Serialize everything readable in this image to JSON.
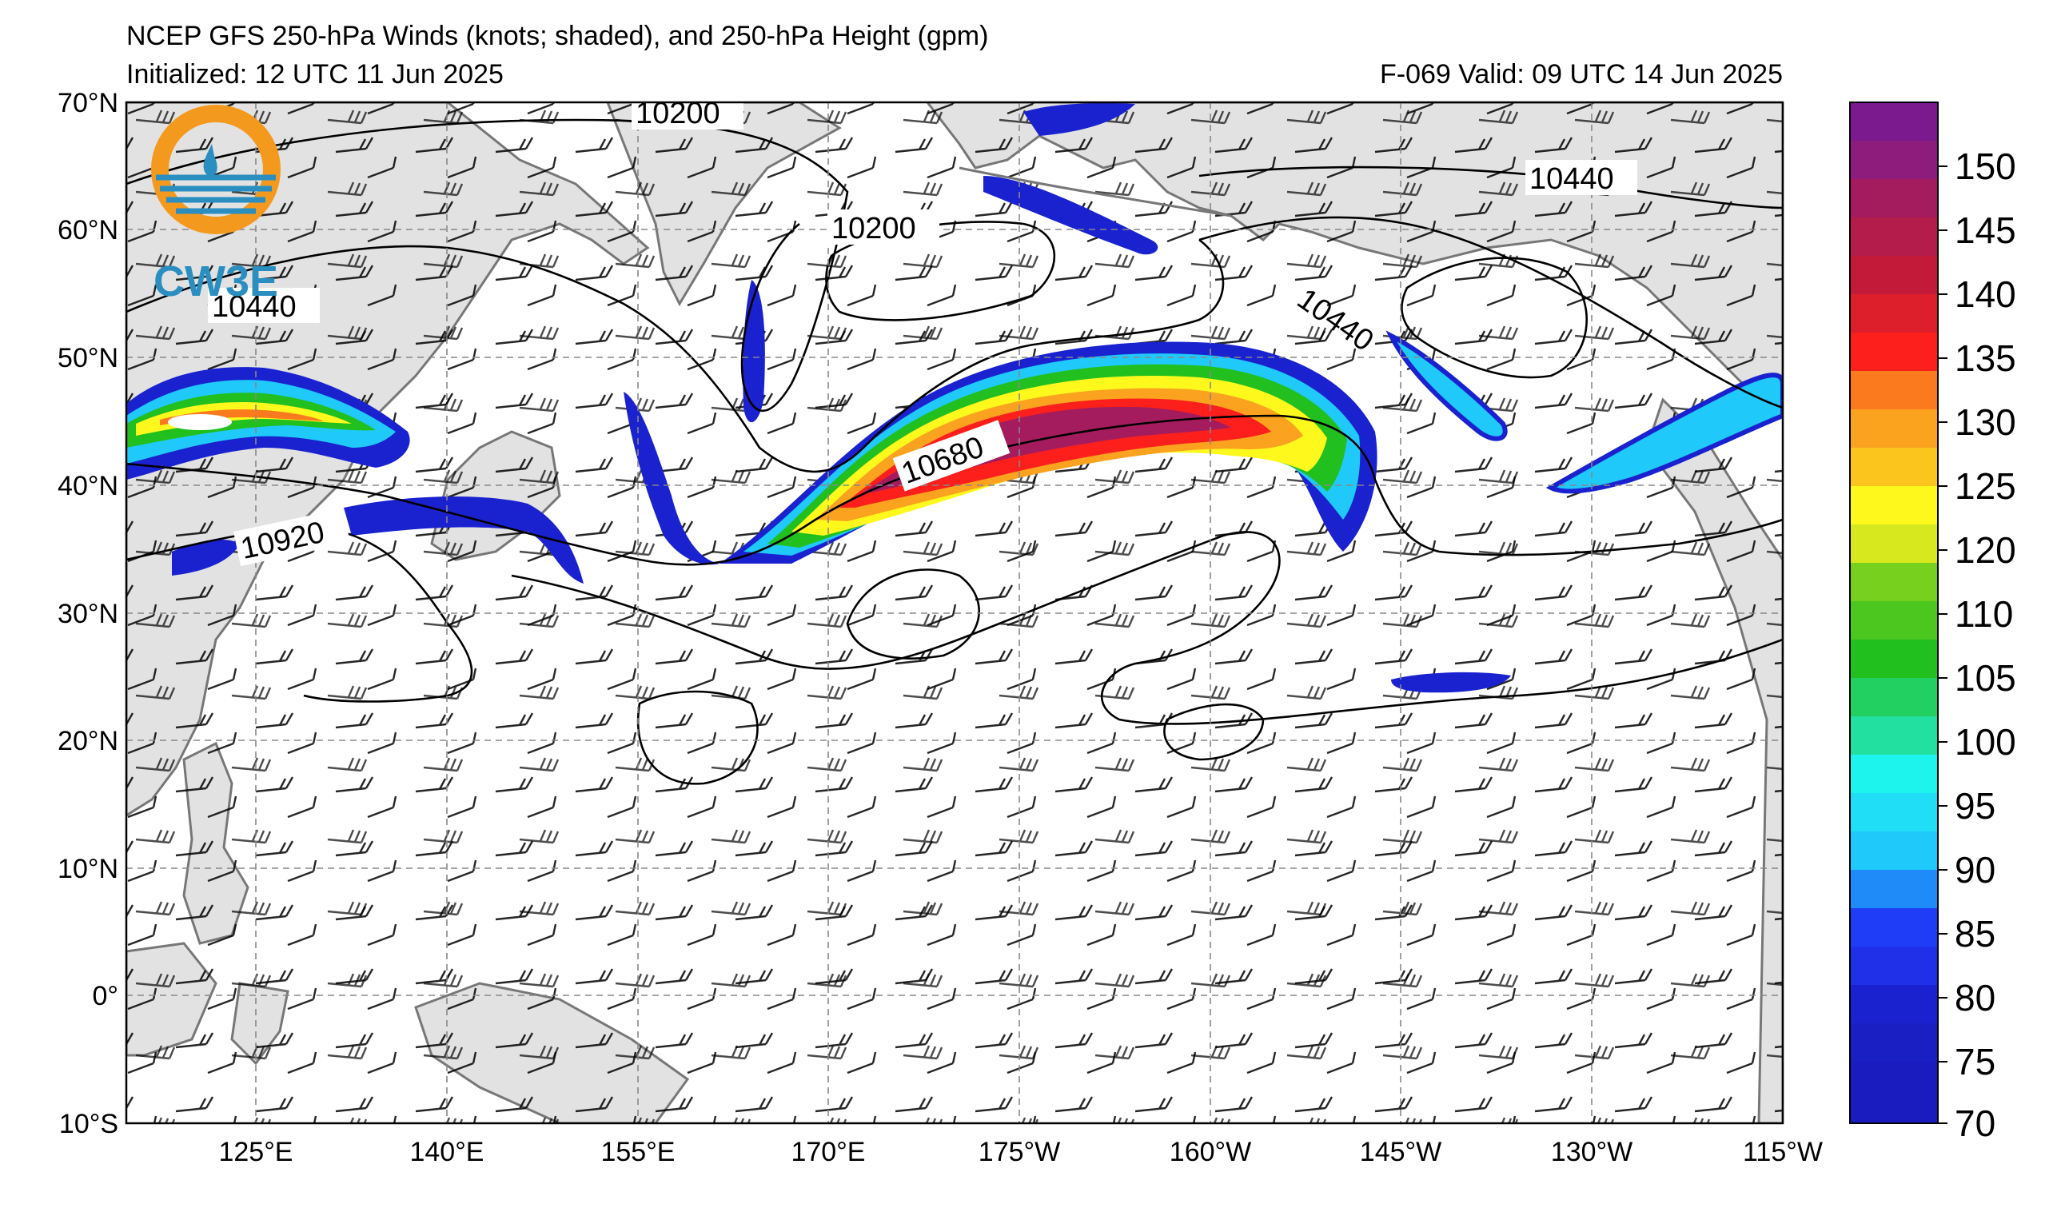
{
  "header": {
    "title": "NCEP GFS 250-hPa Winds (knots; shaded), and 250-hPa Height (gpm)",
    "initialized": "Initialized: 12 UTC 11 Jun 2025",
    "valid": "F-069  Valid: 09 UTC 14 Jun 2025"
  },
  "logo": {
    "text": "CW3E",
    "icon": "cw3e-logo-icon",
    "color_orange": "#F39A1E",
    "color_blue": "#2A8FC0"
  },
  "map": {
    "lat_labels": [
      "70°N",
      "60°N",
      "50°N",
      "40°N",
      "30°N",
      "20°N",
      "10°N",
      "0°",
      "10°S"
    ],
    "lon_labels": [
      "125°E",
      "140°E",
      "155°E",
      "170°E",
      "175°W",
      "160°W",
      "145°W",
      "130°W",
      "115°W"
    ],
    "contour_labels": [
      "10200",
      "10200",
      "10440",
      "10440",
      "10440",
      "10680",
      "10920"
    ],
    "land_color": "#e2e2e2",
    "coast_color": "#777777"
  },
  "colorbar": {
    "ticks": [
      "150",
      "145",
      "140",
      "135",
      "130",
      "125",
      "120",
      "110",
      "105",
      "100",
      "95",
      "90",
      "85",
      "80",
      "75",
      "70"
    ],
    "colors": [
      "#7a1a8e",
      "#8e1c7c",
      "#a51c5e",
      "#c41a3a",
      "#dd1f2b",
      "#fc1f1c",
      "#fb7a1e",
      "#fba31f",
      "#fbc51e",
      "#fef81d",
      "#77cf1e",
      "#21c01f",
      "#22e0a0",
      "#1ef4ee",
      "#1fc9f9",
      "#1f3df7",
      "#1a22cf"
    ]
  }
}
